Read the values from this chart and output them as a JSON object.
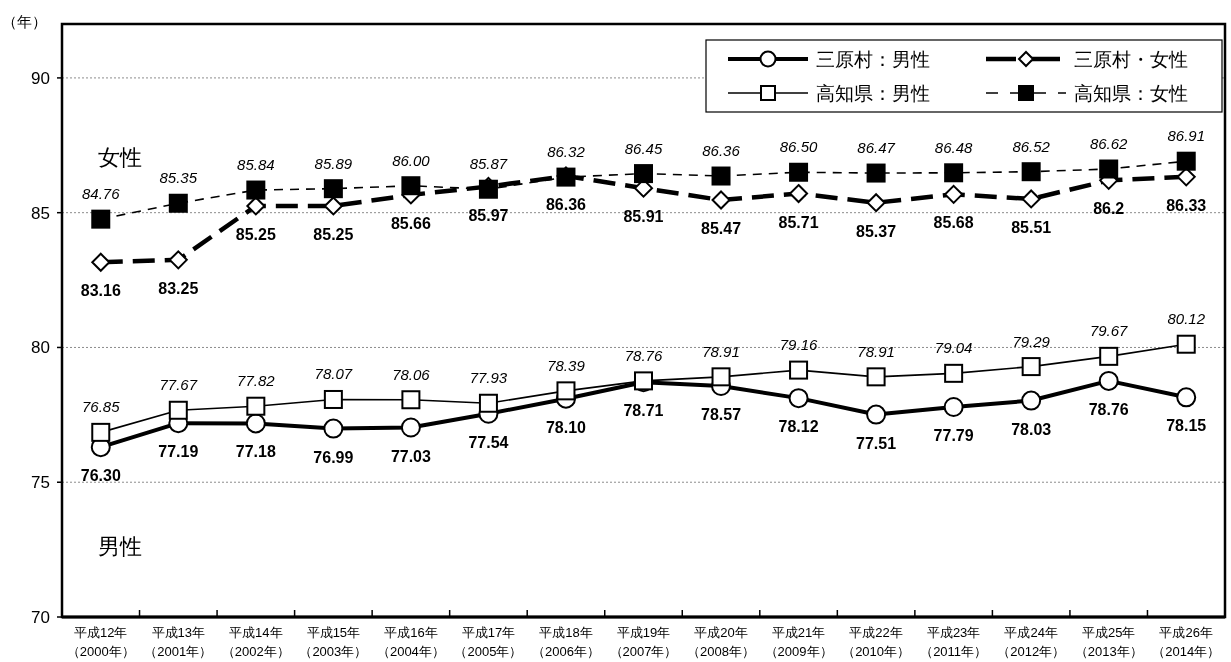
{
  "chart_data": {
    "type": "line",
    "ylabel": "（年）",
    "annotations": [
      "女性",
      "男性"
    ],
    "categories": [
      "平成12年（2000年）",
      "平成13年（2001年）",
      "平成14年（2002年）",
      "平成15年（2003年）",
      "平成16年（2004年）",
      "平成17年（2005年）",
      "平成18年（2006年）",
      "平成19年（2007年）",
      "平成20年（2008年）",
      "平成21年（2009年）",
      "平成22年（2010年）",
      "平成23年（2011年）",
      "平成24年（2012年）",
      "平成25年（2013年）",
      "平成26年（2014年）"
    ],
    "ylim": [
      70,
      92
    ],
    "yticks": [
      70,
      75,
      80,
      85,
      90
    ],
    "grid": "y",
    "legend": "top right",
    "series": [
      {
        "name": "三原村：男性",
        "color": "#000000",
        "marker": "circle",
        "line_style": "solid",
        "values": [
          76.3,
          77.19,
          77.18,
          76.99,
          77.03,
          77.54,
          78.1,
          78.71,
          78.57,
          78.12,
          77.51,
          77.79,
          78.03,
          78.76,
          78.15
        ],
        "value_labels": [
          "76.30",
          "77.19",
          "77.18",
          "76.99",
          "77.03",
          "77.54",
          "78.10",
          "78.71",
          "78.57",
          "78.12",
          "77.51",
          "77.79",
          "78.03",
          "78.76",
          "78.15"
        ]
      },
      {
        "name": "三原村・女性",
        "color": "#000000",
        "marker": "diamond",
        "line_style": "dashed",
        "values": [
          83.16,
          83.25,
          85.25,
          85.25,
          85.66,
          85.97,
          86.36,
          85.91,
          85.47,
          85.71,
          85.37,
          85.68,
          85.51,
          86.2,
          86.33
        ],
        "value_labels": [
          "83.16",
          "83.25",
          "85.25",
          "85.25",
          "85.66",
          "85.97",
          "86.36",
          "85.91",
          "85.47",
          "85.71",
          "85.37",
          "85.68",
          "85.51",
          "86.2",
          "86.33"
        ]
      },
      {
        "name": "高知県：男性",
        "color": "#000000",
        "marker": "square",
        "line_style": "solid",
        "values": [
          76.85,
          77.67,
          77.82,
          78.07,
          78.06,
          77.93,
          78.39,
          78.76,
          78.91,
          79.16,
          78.91,
          79.04,
          79.29,
          79.67,
          80.12
        ],
        "value_labels": [
          "76.85",
          "77.67",
          "77.82",
          "78.07",
          "78.06",
          "77.93",
          "78.39",
          "78.76",
          "78.91",
          "79.16",
          "78.91",
          "79.04",
          "79.29",
          "79.67",
          "80.12"
        ]
      },
      {
        "name": "高知県：女性",
        "color": "#000000",
        "marker": "square",
        "line_style": "dashed",
        "values": [
          84.76,
          85.35,
          85.84,
          85.89,
          86.0,
          85.87,
          86.32,
          86.45,
          86.36,
          86.5,
          86.47,
          86.48,
          86.52,
          86.62,
          86.91
        ],
        "value_labels": [
          "84.76",
          "85.35",
          "85.84",
          "85.89",
          "86.00",
          "85.87",
          "86.32",
          "86.45",
          "86.36",
          "86.50",
          "86.47",
          "86.48",
          "86.52",
          "86.62",
          "86.91"
        ]
      }
    ]
  }
}
